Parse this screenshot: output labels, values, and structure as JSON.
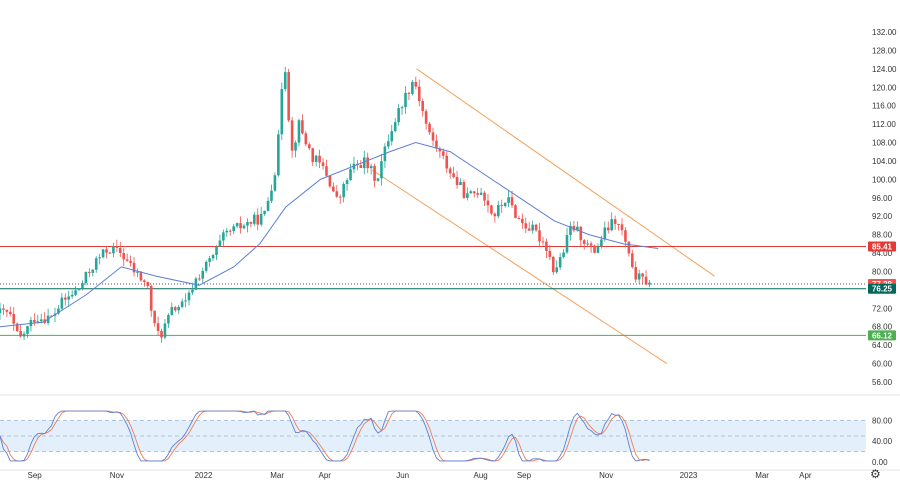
{
  "chart_data": [
    {
      "type": "candlestick",
      "y_axis": {
        "ticks": [
          "132.00",
          "128.00",
          "124.00",
          "120.00",
          "116.00",
          "112.00",
          "108.00",
          "104.00",
          "100.00",
          "96.00",
          "92.00",
          "88.00",
          "84.00",
          "80.00",
          "76.00",
          "72.00",
          "68.00",
          "64.00",
          "60.00",
          "56.00"
        ],
        "ylim": [
          56,
          132
        ]
      },
      "x_axis": {
        "ticks": [
          {
            "label": "Sep",
            "t": 0.04
          },
          {
            "label": "Nov",
            "t": 0.135
          },
          {
            "label": "2022",
            "t": 0.235
          },
          {
            "label": "Mar",
            "t": 0.32
          },
          {
            "label": "Apr",
            "t": 0.375
          },
          {
            "label": "Jun",
            "t": 0.465
          },
          {
            "label": "Aug",
            "t": 0.555
          },
          {
            "label": "Sep",
            "t": 0.605
          },
          {
            "label": "Nov",
            "t": 0.7
          },
          {
            "label": "2023",
            "t": 0.795
          },
          {
            "label": "Mar",
            "t": 0.88
          },
          {
            "label": "Apr",
            "t": 0.93
          }
        ]
      },
      "key_points": [
        [
          0.0,
          71
        ],
        [
          0.01,
          71
        ],
        [
          0.022,
          65
        ],
        [
          0.04,
          70
        ],
        [
          0.06,
          70
        ],
        [
          0.07,
          73
        ],
        [
          0.09,
          76
        ],
        [
          0.11,
          82
        ],
        [
          0.125,
          85
        ],
        [
          0.14,
          84
        ],
        [
          0.155,
          80
        ],
        [
          0.17,
          77
        ],
        [
          0.178,
          68
        ],
        [
          0.185,
          66
        ],
        [
          0.2,
          72
        ],
        [
          0.215,
          73
        ],
        [
          0.225,
          78
        ],
        [
          0.245,
          83
        ],
        [
          0.26,
          88
        ],
        [
          0.28,
          90
        ],
        [
          0.305,
          92
        ],
        [
          0.32,
          104
        ],
        [
          0.325,
          120
        ],
        [
          0.33,
          125
        ],
        [
          0.336,
          105
        ],
        [
          0.345,
          112
        ],
        [
          0.36,
          105
        ],
        [
          0.375,
          102
        ],
        [
          0.39,
          95
        ],
        [
          0.405,
          102
        ],
        [
          0.42,
          104
        ],
        [
          0.435,
          100
        ],
        [
          0.45,
          110
        ],
        [
          0.465,
          117
        ],
        [
          0.478,
          122
        ],
        [
          0.485,
          117
        ],
        [
          0.495,
          110
        ],
        [
          0.51,
          105
        ],
        [
          0.525,
          100
        ],
        [
          0.54,
          96
        ],
        [
          0.555,
          98
        ],
        [
          0.57,
          92
        ],
        [
          0.585,
          96
        ],
        [
          0.6,
          91
        ],
        [
          0.615,
          89
        ],
        [
          0.63,
          86
        ],
        [
          0.64,
          80
        ],
        [
          0.65,
          84
        ],
        [
          0.66,
          90
        ],
        [
          0.67,
          88
        ],
        [
          0.685,
          84
        ],
        [
          0.7,
          89
        ],
        [
          0.71,
          91
        ],
        [
          0.72,
          88
        ],
        [
          0.73,
          80
        ],
        [
          0.74,
          78
        ],
        [
          0.75,
          78
        ]
      ],
      "moving_average": [
        [
          0.0,
          68
        ],
        [
          0.05,
          69
        ],
        [
          0.1,
          75
        ],
        [
          0.14,
          81
        ],
        [
          0.18,
          79
        ],
        [
          0.23,
          77
        ],
        [
          0.27,
          81
        ],
        [
          0.3,
          86
        ],
        [
          0.33,
          94
        ],
        [
          0.37,
          100
        ],
        [
          0.41,
          103
        ],
        [
          0.45,
          106
        ],
        [
          0.48,
          108
        ],
        [
          0.52,
          106
        ],
        [
          0.56,
          101
        ],
        [
          0.6,
          96
        ],
        [
          0.64,
          91
        ],
        [
          0.68,
          88
        ],
        [
          0.72,
          86
        ],
        [
          0.76,
          85
        ]
      ],
      "channel": {
        "upper": [
          [
            0.481,
            124
          ],
          [
            0.825,
            79
          ]
        ],
        "lower": [
          [
            0.43,
            102
          ],
          [
            0.77,
            60
          ]
        ]
      },
      "levels": [
        {
          "value": 85.41,
          "label": "85.41",
          "color": "#e53935"
        },
        {
          "value": 77.28,
          "label": "77.28",
          "color": "#ef5350",
          "dotted": true
        },
        {
          "value": 76.25,
          "label": "76.25",
          "color": "#00695c"
        },
        {
          "value": 66.12,
          "label": "66.12",
          "color": "#4caf50"
        }
      ],
      "colors": {
        "up": "#26a69a",
        "down": "#ef5350",
        "ma": "#5c7fd6",
        "channel": "#f5a05a"
      }
    },
    {
      "type": "line",
      "indicator": "stochastic",
      "y_axis": {
        "ticks": [
          "80.00",
          "40.00",
          "0.00"
        ],
        "ylim": [
          0,
          100
        ]
      },
      "band": [
        20,
        80
      ],
      "colors": {
        "k": "#5c7fd6",
        "d": "#ef7b5a",
        "band": "#e3f0fb"
      }
    }
  ]
}
